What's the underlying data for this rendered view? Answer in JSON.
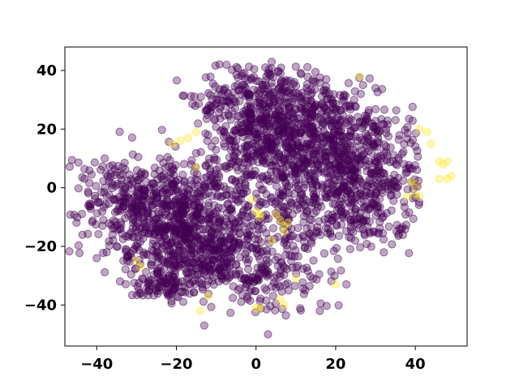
{
  "chart_data": {
    "type": "scatter",
    "title": "",
    "xlabel": "",
    "ylabel": "",
    "xlim": [
      -48,
      53
    ],
    "ylim": [
      -54,
      48
    ],
    "x_ticks": [
      -40,
      -20,
      0,
      20,
      40
    ],
    "y_ticks": [
      -40,
      -20,
      0,
      20,
      40
    ],
    "x_tick_labels": [
      "−40",
      "−20",
      "0",
      "20",
      "40"
    ],
    "y_tick_labels": [
      "−40",
      "−20",
      "0",
      "20",
      "40"
    ],
    "grid": false,
    "legend": false,
    "colors": {
      "class_0": "#440154",
      "class_1": "#fde725"
    },
    "point_alpha": 0.35,
    "series": [
      {
        "class": 0,
        "note_kind": "dense_clusters",
        "clusters": [
          {
            "center": [
              -20,
              -10
            ],
            "spread": [
              10,
              9
            ],
            "count": 700
          },
          {
            "center": [
              -13,
              -24
            ],
            "spread": [
              7,
              6
            ],
            "count": 260
          },
          {
            "center": [
              -22,
              -33
            ],
            "spread": [
              5,
              3
            ],
            "count": 90
          },
          {
            "center": [
              12,
              18
            ],
            "spread": [
              11,
              9
            ],
            "count": 620
          },
          {
            "center": [
              27,
              6
            ],
            "spread": [
              7,
              8
            ],
            "count": 300
          },
          {
            "center": [
              5,
              5
            ],
            "spread": [
              9,
              10
            ],
            "count": 230
          },
          {
            "center": [
              3,
              33
            ],
            "spread": [
              9,
              5
            ],
            "count": 180
          },
          {
            "center": [
              22,
              -10
            ],
            "spread": [
              9,
              6
            ],
            "count": 160
          },
          {
            "center": [
              5,
              -28
            ],
            "spread": [
              7,
              7
            ],
            "count": 150
          },
          {
            "center": [
              -3,
              22
            ],
            "spread": [
              5,
              4
            ],
            "count": 80
          },
          {
            "center": [
              -35,
              0
            ],
            "spread": [
              5,
              6
            ],
            "count": 90
          }
        ],
        "outliers": [
          [
            -13,
            -47
          ],
          [
            3,
            -50
          ],
          [
            16,
            -42
          ],
          [
            -38,
            10
          ],
          [
            41,
            -5
          ],
          [
            -35,
            -20
          ],
          [
            -40,
            -24
          ],
          [
            36,
            -14
          ],
          [
            30,
            34
          ]
        ]
      },
      {
        "class": 1,
        "points": [
          [
            -21,
            15
          ],
          [
            -19,
            16
          ],
          [
            -15,
            19
          ],
          [
            -17,
            17
          ],
          [
            -30,
            -25
          ],
          [
            -29,
            -27
          ],
          [
            -1,
            -4
          ],
          [
            0,
            -8
          ],
          [
            1,
            -9
          ],
          [
            1,
            -10
          ],
          [
            5,
            -9
          ],
          [
            6,
            -11
          ],
          [
            7,
            -13
          ],
          [
            7,
            -15
          ],
          [
            8,
            -12
          ],
          [
            4,
            -18
          ],
          [
            0,
            -41
          ],
          [
            1,
            -41
          ],
          [
            6,
            -38
          ],
          [
            7,
            -40
          ],
          [
            -14,
            -42
          ],
          [
            -12,
            -37
          ],
          [
            10,
            -31
          ],
          [
            20,
            -33
          ],
          [
            26,
            38
          ],
          [
            41,
            20
          ],
          [
            43,
            19
          ],
          [
            44,
            15
          ],
          [
            46,
            9
          ],
          [
            47,
            8
          ],
          [
            48,
            9
          ],
          [
            48,
            3
          ],
          [
            49,
            4
          ],
          [
            46,
            3
          ],
          [
            39,
            2
          ],
          [
            40,
            -2
          ],
          [
            41,
            -3
          ],
          [
            38,
            -3
          ],
          [
            40,
            1
          ],
          [
            -15,
            7
          ]
        ]
      }
    ]
  }
}
